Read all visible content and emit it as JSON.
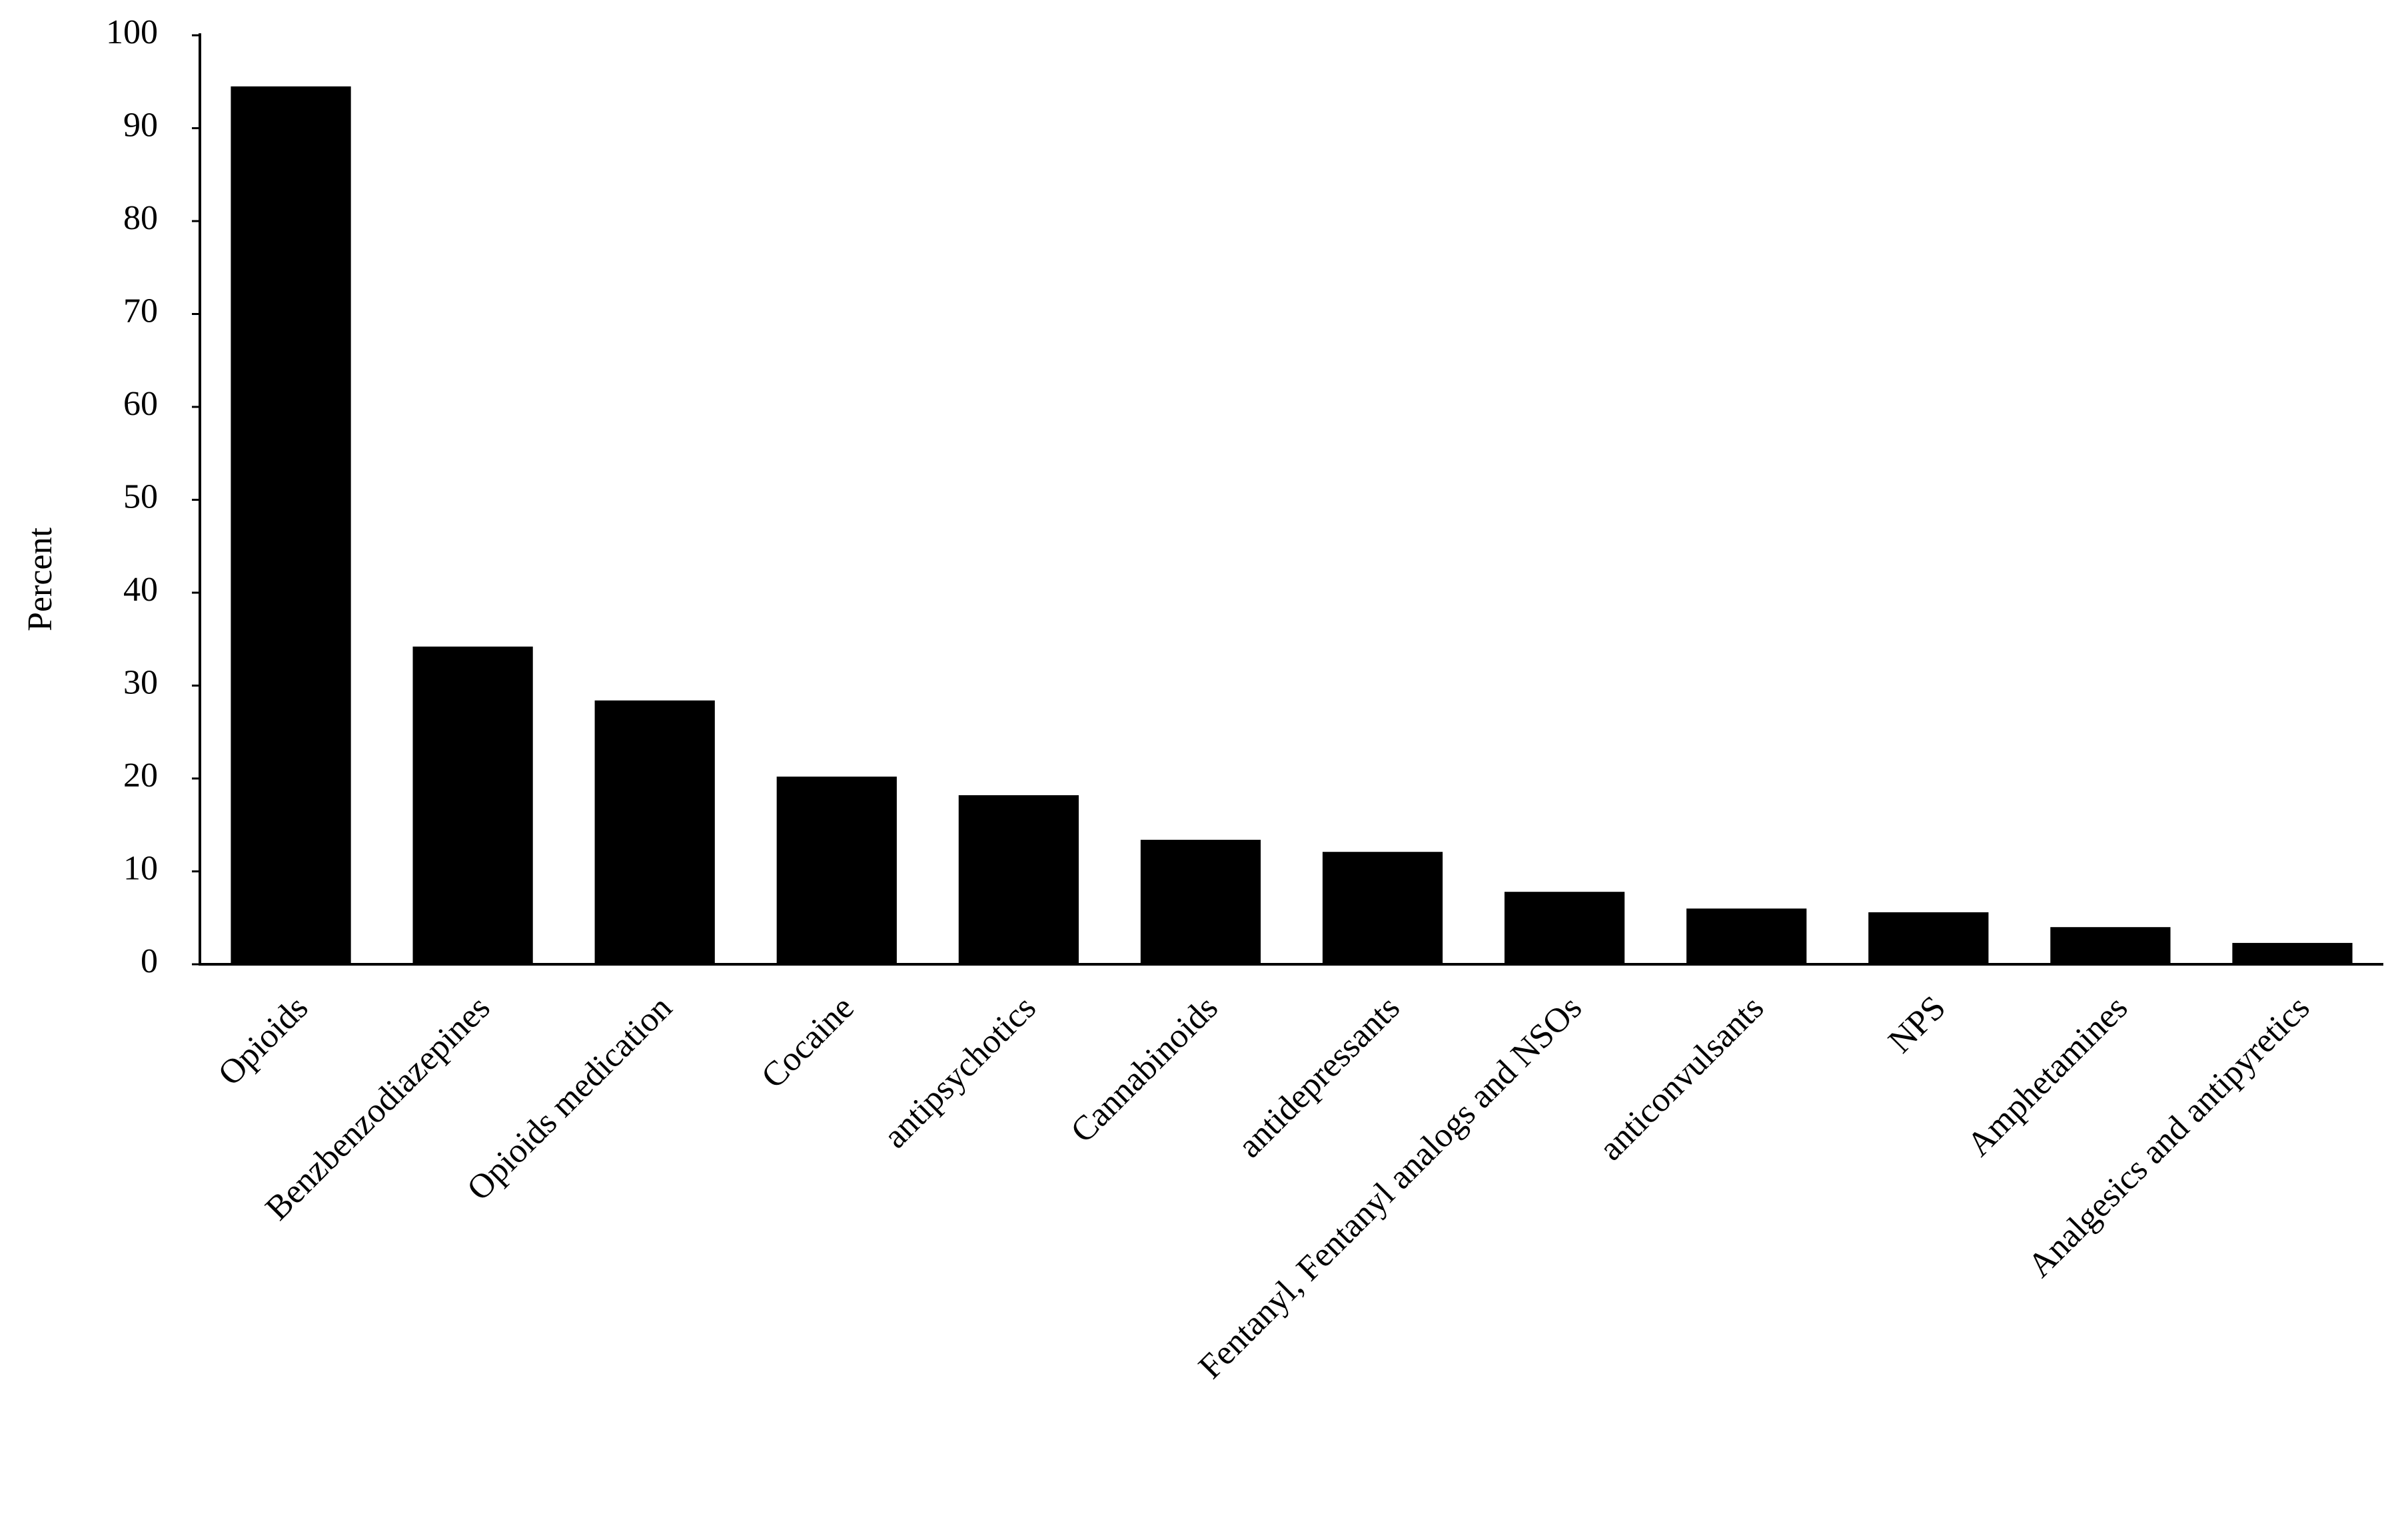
{
  "chart_data": {
    "type": "bar",
    "ylabel": "Percent",
    "categories": [
      "Opioids",
      "Benzbenzodiazepines",
      "Opioids medication",
      "Cocaine",
      "antipsychotics",
      "Cannabinoids",
      "antidepressants",
      "Fentanyl, Fentanyl analogs and NSOs",
      "anticonvulsants",
      "NPS",
      "Amphetamines",
      "Analgesics and antipyretics"
    ],
    "values": [
      94.5,
      34.2,
      28.4,
      20.2,
      18.2,
      13.4,
      12.1,
      7.8,
      6.0,
      5.6,
      4.0,
      2.3
    ],
    "color": "#000000",
    "ylim": [
      0,
      100
    ],
    "yticks": [
      0,
      10,
      20,
      30,
      40,
      50,
      60,
      70,
      80,
      90,
      100
    ],
    "grid": false
  }
}
